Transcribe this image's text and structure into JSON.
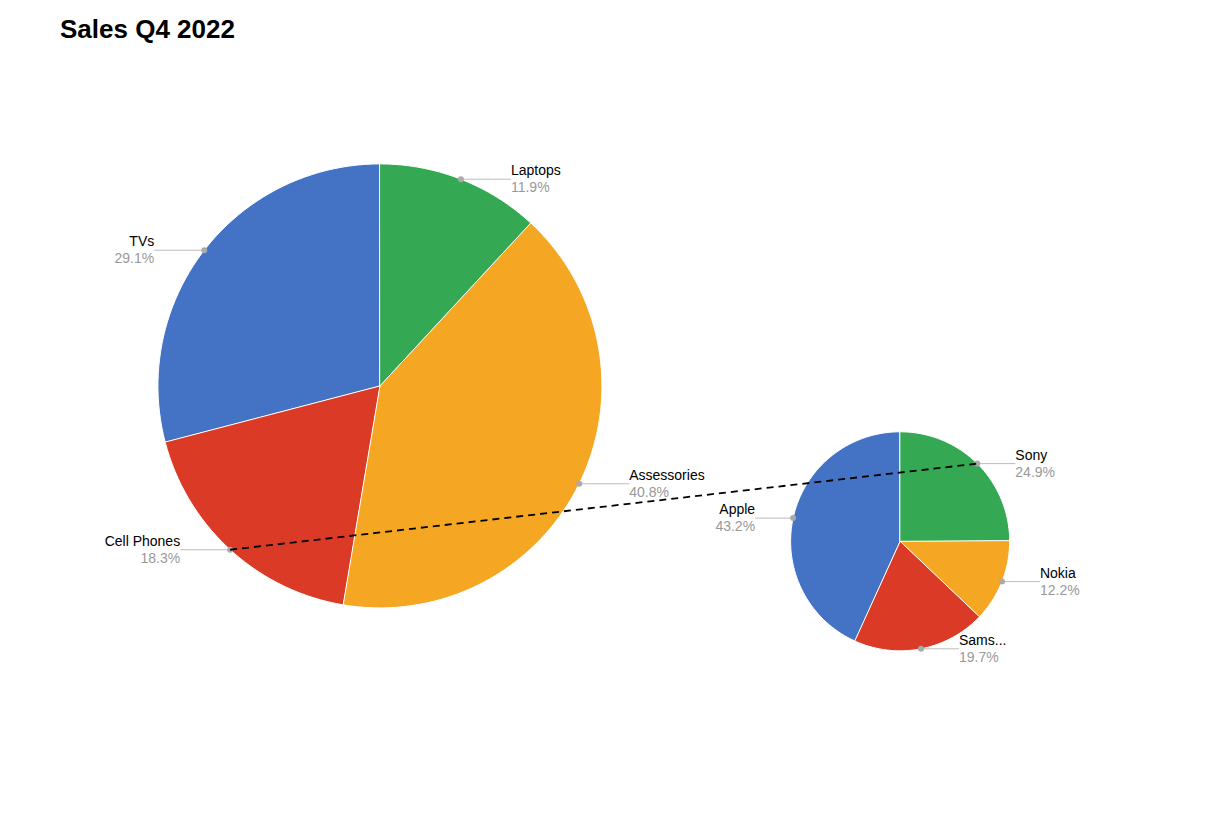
{
  "chart_data": [
    {
      "type": "pie",
      "title": "Sales Q4 2022",
      "categories": [
        "TVs",
        "Cell Phones",
        "Assessories",
        "Laptops"
      ],
      "values": [
        29.1,
        18.3,
        40.8,
        11.9
      ],
      "value_labels": [
        "29.1%",
        "18.3%",
        "40.8%",
        "11.9%"
      ],
      "colors": [
        "#4472c4",
        "#db3b26",
        "#f5a623",
        "#34a853"
      ],
      "data_labels": true
    },
    {
      "type": "pie",
      "categories": [
        "Apple",
        "Sams...",
        "Nokia",
        "Sony"
      ],
      "values": [
        43.2,
        19.7,
        12.2,
        24.9
      ],
      "value_labels": [
        "43.2%",
        "19.7%",
        "12.2%",
        "24.9%"
      ],
      "colors": [
        "#4472c4",
        "#db3b26",
        "#f5a623",
        "#34a853"
      ],
      "data_labels": true
    }
  ]
}
